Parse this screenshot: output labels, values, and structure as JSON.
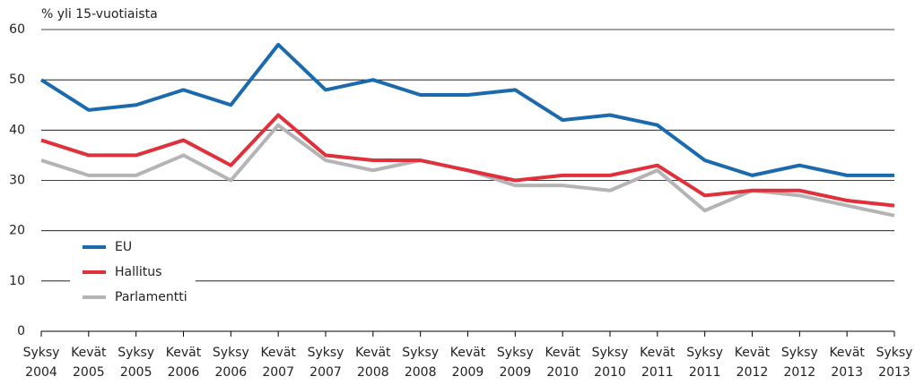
{
  "chart_data": {
    "type": "line",
    "y_label": "% yli 15-vuotiaista",
    "categories": [
      [
        "Syksy",
        "2004"
      ],
      [
        "Kevät",
        "2005"
      ],
      [
        "Syksy",
        "2005"
      ],
      [
        "Kevät",
        "2006"
      ],
      [
        "Syksy",
        "2006"
      ],
      [
        "Kevät",
        "2007"
      ],
      [
        "Syksy",
        "2007"
      ],
      [
        "Kevät",
        "2008"
      ],
      [
        "Syksy",
        "2008"
      ],
      [
        "Kevät",
        "2009"
      ],
      [
        "Syksy",
        "2009"
      ],
      [
        "Kevät",
        "2010"
      ],
      [
        "Syksy",
        "2010"
      ],
      [
        "Kevät",
        "2011"
      ],
      [
        "Syksy",
        "2011"
      ],
      [
        "Kevät",
        "2012"
      ],
      [
        "Syksy",
        "2012"
      ],
      [
        "Kevät",
        "2013"
      ],
      [
        "Syksy",
        "2013"
      ]
    ],
    "series": [
      {
        "name": "EU",
        "color": "#1a6aad",
        "values": [
          50,
          44,
          45,
          48,
          45,
          57,
          48,
          50,
          47,
          47,
          48,
          42,
          43,
          41,
          34,
          31,
          33,
          31,
          31
        ]
      },
      {
        "name": "Hallitus",
        "color": "#e0303a",
        "values": [
          38,
          35,
          35,
          38,
          33,
          43,
          35,
          34,
          34,
          32,
          30,
          31,
          31,
          33,
          27,
          28,
          28,
          26,
          25
        ]
      },
      {
        "name": "Parlamentti",
        "color": "#b4b4b4",
        "values": [
          34,
          31,
          31,
          35,
          30,
          41,
          34,
          32,
          34,
          32,
          29,
          29,
          28,
          32,
          24,
          28,
          27,
          25,
          23
        ]
      }
    ],
    "ylim": [
      0,
      60
    ],
    "yticks": [
      0,
      10,
      20,
      30,
      40,
      50,
      60
    ],
    "grid": true,
    "legend": "lower left"
  }
}
